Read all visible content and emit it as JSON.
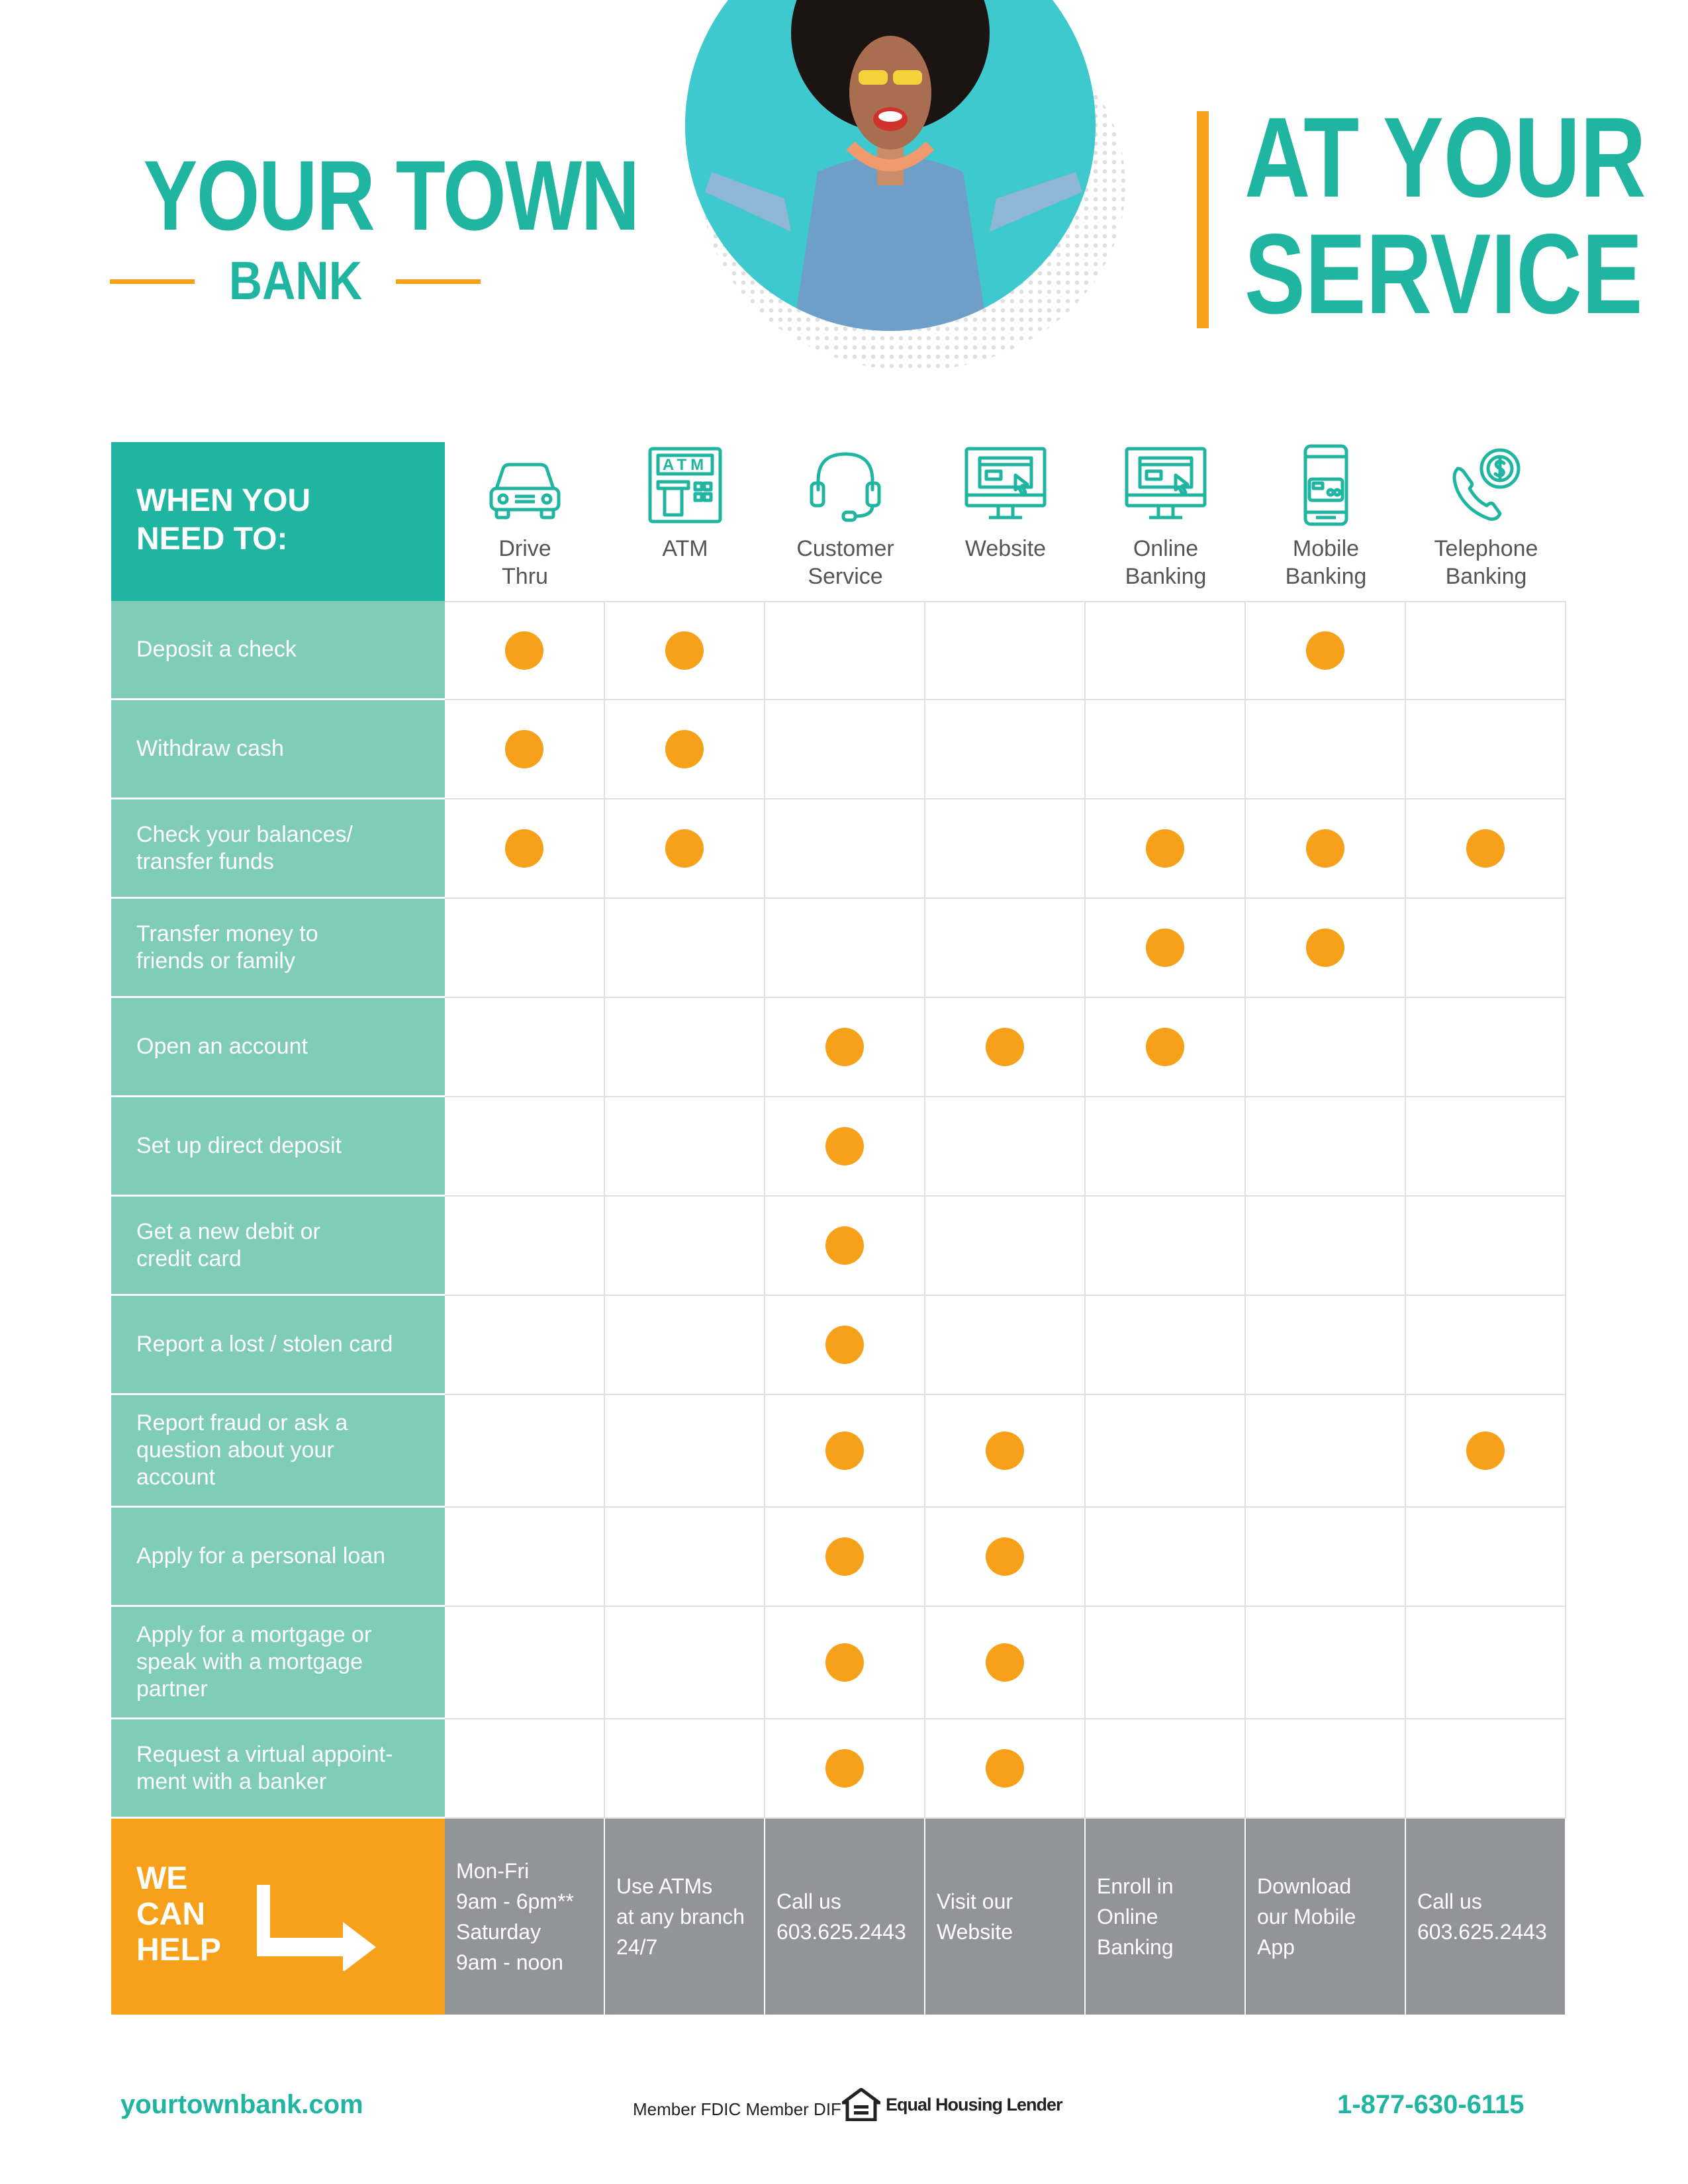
{
  "logo": {
    "main": "YOUR TOWN",
    "sub": "BANK"
  },
  "tagline": {
    "line1": "AT YOUR",
    "line2": "SERVICE"
  },
  "table": {
    "header": "WHEN YOU\nNEED TO:",
    "columns": [
      {
        "label": "Drive\nThru",
        "icon": "car-icon"
      },
      {
        "label": "ATM",
        "icon": "atm-icon"
      },
      {
        "label": "Customer\nService",
        "icon": "headset-icon"
      },
      {
        "label": "Website",
        "icon": "monitor-icon"
      },
      {
        "label": "Online\nBanking",
        "icon": "monitor-icon"
      },
      {
        "label": "Mobile\nBanking",
        "icon": "smartphone-icon"
      },
      {
        "label": "Telephone\nBanking",
        "icon": "phone-dollar-icon"
      }
    ],
    "rows": [
      {
        "label": "Deposit a check",
        "marks": [
          1,
          1,
          0,
          0,
          0,
          1,
          0
        ]
      },
      {
        "label": "Withdraw cash",
        "marks": [
          1,
          1,
          0,
          0,
          0,
          0,
          0
        ]
      },
      {
        "label": "Check your balances/\ntransfer funds",
        "marks": [
          1,
          1,
          0,
          0,
          1,
          1,
          1
        ]
      },
      {
        "label": "Transfer money to\nfriends or family",
        "marks": [
          0,
          0,
          0,
          0,
          1,
          1,
          0
        ]
      },
      {
        "label": "Open an account",
        "marks": [
          0,
          0,
          1,
          1,
          1,
          0,
          0
        ]
      },
      {
        "label": "Set up direct deposit",
        "marks": [
          0,
          0,
          1,
          0,
          0,
          0,
          0
        ]
      },
      {
        "label": "Get a new debit or\ncredit card",
        "marks": [
          0,
          0,
          1,
          0,
          0,
          0,
          0
        ]
      },
      {
        "label": "Report  a lost / stolen card",
        "marks": [
          0,
          0,
          1,
          0,
          0,
          0,
          0
        ]
      },
      {
        "label": "Report fraud or ask a\nquestion about your\naccount",
        "marks": [
          0,
          0,
          1,
          1,
          0,
          0,
          1
        ]
      },
      {
        "label": "Apply for a personal loan",
        "marks": [
          0,
          0,
          1,
          1,
          0,
          0,
          0
        ]
      },
      {
        "label": "Apply for a mortgage or\nspeak with a mortgage\npartner",
        "marks": [
          0,
          0,
          1,
          1,
          0,
          0,
          0
        ]
      },
      {
        "label": "Request a virtual appoint-\nment with a banker",
        "marks": [
          0,
          0,
          1,
          1,
          0,
          0,
          0
        ]
      }
    ]
  },
  "help": {
    "header": "WE\nCAN\nHELP",
    "cells": [
      "Mon-Fri\n9am - 6pm**\nSaturday\n9am - noon",
      "Use ATMs\nat any branch\n24/7",
      "Call us\n603.625.2443",
      "Visit our\nWebsite",
      "Enroll in\nOnline\nBanking",
      "Download\nour Mobile\nApp",
      "Call us\n603.625.2443"
    ]
  },
  "footer": {
    "url": "yourtownbank.com",
    "member": "Member FDIC  Member DIF",
    "ehl": "Equal Housing Lender",
    "phone": "1-877-630-6115"
  },
  "colors": {
    "teal": "#1fb5a0",
    "light_teal": "#7fcdb9",
    "orange": "#f7a11a",
    "gray": "#939498"
  }
}
